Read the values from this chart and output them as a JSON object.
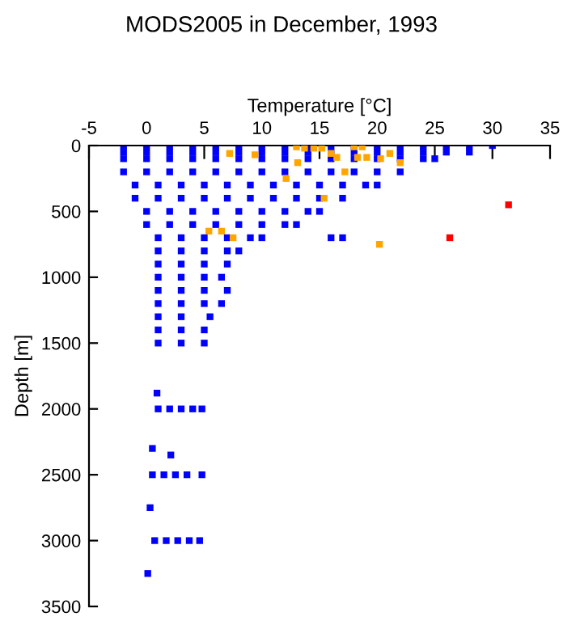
{
  "chart_data": {
    "type": "scatter",
    "title": "MODS2005 in December, 1993",
    "xlabel": "Temperature [°C]",
    "ylabel": "Depth [m]",
    "xlim": [
      -5,
      35
    ],
    "xticks": [
      -5,
      0,
      5,
      10,
      15,
      20,
      25,
      30,
      35
    ],
    "ylim": [
      3500,
      0
    ],
    "yticks": [
      0,
      500,
      1000,
      1500,
      2000,
      2500,
      3000,
      3500
    ],
    "grid": false,
    "marker": "square",
    "series": [
      {
        "color": "#0000ff",
        "x": [
          -2,
          0,
          2,
          4,
          6,
          8,
          10,
          12,
          14,
          16,
          18,
          20,
          22,
          24,
          26,
          28,
          30,
          -2,
          0,
          2,
          4,
          6,
          8,
          10,
          12,
          14,
          16,
          18,
          20,
          22,
          24,
          26,
          28,
          -2,
          0,
          2,
          4,
          6,
          8,
          10,
          12,
          14,
          16,
          18,
          20,
          22,
          24,
          25,
          -2,
          0,
          2,
          4,
          6,
          8,
          10,
          12,
          14,
          16,
          18,
          20,
          22,
          -1,
          1,
          3,
          5,
          7,
          9,
          11,
          13,
          15,
          17,
          19,
          20,
          -1,
          1,
          3,
          5,
          7,
          9,
          11,
          13,
          15,
          17,
          0,
          2,
          4,
          6,
          8,
          10,
          12,
          14,
          15,
          0,
          2,
          4,
          6,
          8,
          10,
          12,
          13,
          1,
          3,
          5,
          7,
          9,
          10,
          16,
          17,
          1,
          3,
          5,
          7,
          8,
          1,
          3,
          5,
          7,
          1,
          3,
          5,
          6.5,
          1,
          3,
          5,
          7,
          1,
          3,
          5,
          6.5,
          1,
          3,
          5.5,
          1,
          3,
          5,
          1,
          3,
          5,
          0.9,
          1,
          2,
          3,
          4,
          4.8,
          0.5,
          2.1,
          0.5,
          1.5,
          2.5,
          3.5,
          4.8,
          0.3,
          0.7,
          1.7,
          2.7,
          3.7,
          4.6,
          0.1
        ],
        "values": [
          0,
          0,
          0,
          0,
          0,
          0,
          0,
          0,
          0,
          0,
          0,
          0,
          0,
          0,
          0,
          0,
          0,
          50,
          50,
          50,
          50,
          50,
          50,
          50,
          50,
          50,
          50,
          50,
          50,
          50,
          50,
          50,
          50,
          100,
          100,
          100,
          100,
          100,
          100,
          100,
          100,
          100,
          100,
          100,
          100,
          100,
          100,
          100,
          200,
          200,
          200,
          200,
          200,
          200,
          200,
          200,
          200,
          200,
          200,
          200,
          200,
          300,
          300,
          300,
          300,
          300,
          300,
          300,
          300,
          300,
          300,
          300,
          300,
          400,
          400,
          400,
          400,
          400,
          400,
          400,
          400,
          400,
          400,
          500,
          500,
          500,
          500,
          500,
          500,
          500,
          500,
          500,
          600,
          600,
          600,
          600,
          600,
          600,
          600,
          600,
          700,
          700,
          700,
          700,
          700,
          700,
          700,
          700,
          800,
          800,
          800,
          800,
          800,
          900,
          900,
          900,
          900,
          1000,
          1000,
          1000,
          1000,
          1100,
          1100,
          1100,
          1100,
          1200,
          1200,
          1200,
          1200,
          1300,
          1300,
          1300,
          1400,
          1400,
          1400,
          1500,
          1500,
          1500,
          1880,
          2000,
          2000,
          2000,
          2000,
          2000,
          2300,
          2350,
          2500,
          2500,
          2500,
          2500,
          2500,
          2750,
          3000,
          3000,
          3000,
          3000,
          3000,
          3250
        ]
      },
      {
        "color": "#ffa500",
        "x": [
          5.4,
          6.5,
          7.5,
          20.2,
          15.4,
          13.1,
          12.1,
          17.2,
          7.2,
          9.4,
          13,
          13.7,
          14.5,
          15.2,
          16,
          16.5,
          18,
          18.7,
          18.3,
          19.1,
          20.3,
          21.1,
          22
        ],
        "values": [
          650,
          650,
          700,
          750,
          400,
          130,
          250,
          200,
          60,
          70,
          10,
          20,
          20,
          20,
          60,
          90,
          10,
          10,
          90,
          90,
          100,
          60,
          130
        ]
      },
      {
        "color": "#ff0000",
        "x": [
          31.4,
          26.3
        ],
        "values": [
          450,
          700
        ]
      }
    ]
  }
}
